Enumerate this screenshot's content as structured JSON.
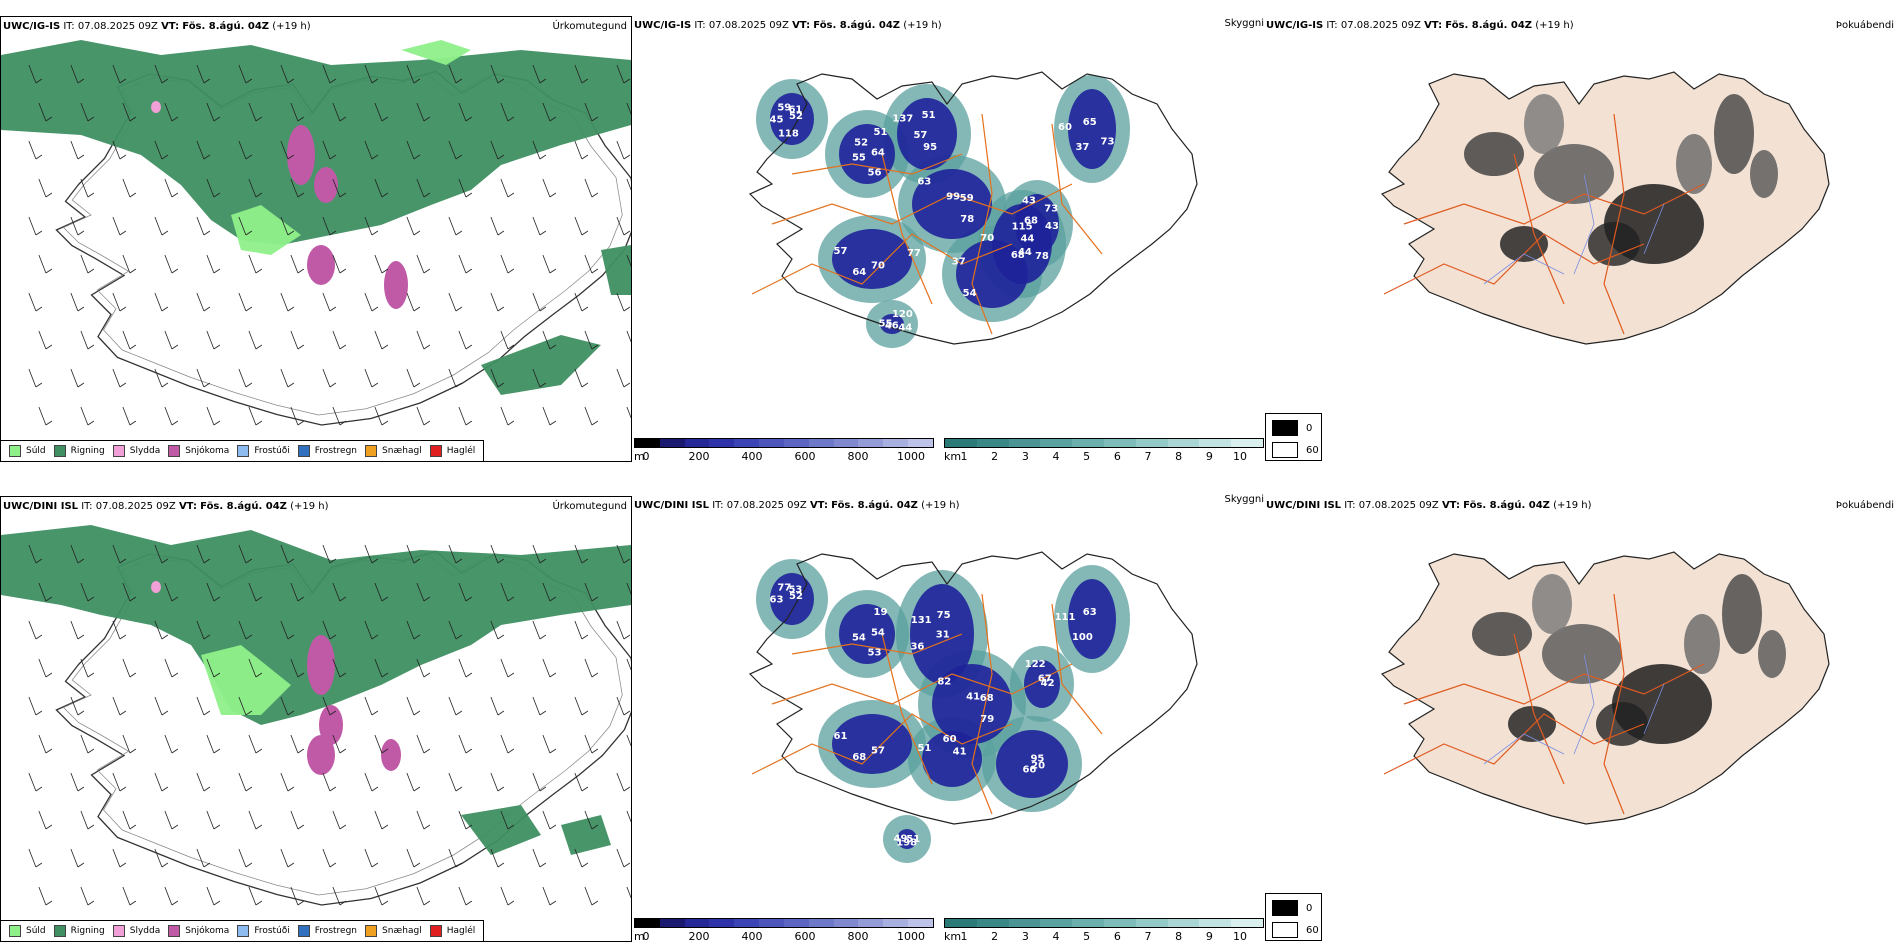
{
  "rows": [
    {
      "model": "UWC/IG-IS",
      "it_label": "IT:",
      "it_value": "07.08.2025 09Z",
      "vt_label": "VT:",
      "vt_value": "Fös. 8.ágú. 04Z",
      "lead": "(+19 h)",
      "precip_title": "Úrkomutegund",
      "fog_title": "Þokuábendi",
      "cloud_labels": [
        "52",
        "55",
        "51",
        "78",
        "57",
        "44",
        "68",
        "65",
        "43",
        "55",
        "61",
        "56",
        "137",
        "59",
        "64",
        "70",
        "78",
        "60",
        "73",
        "46",
        "59",
        "64",
        "57",
        "99",
        "70",
        "37",
        "44",
        "37",
        "43",
        "44",
        "45",
        "51",
        "95",
        "63",
        "77",
        "54",
        "115",
        "73",
        "68",
        "120",
        "118",
        "52"
      ]
    },
    {
      "model": "UWC/DINI ISL",
      "it_label": "IT:",
      "it_value": "07.08.2025 09Z",
      "vt_label": "VT:",
      "vt_value": "Fös. 8.ágú. 04Z",
      "lead": "(+19 h)",
      "precip_title": "Úrkomutegund",
      "fog_title": "Þokuábendi",
      "cloud_labels": [
        "52",
        "54",
        "75",
        "79",
        "61",
        "41",
        "66",
        "63",
        "42",
        "49",
        "53",
        "53",
        "131",
        "68",
        "68",
        "60",
        "20",
        "111",
        "67",
        "198",
        "77",
        "54",
        "36",
        "41",
        "57",
        "51",
        "95",
        "100",
        "122",
        "51",
        "63",
        "19",
        "31",
        "82"
      ]
    }
  ],
  "skyggni_title": "Skyggni",
  "precip_legend": [
    {
      "label": "Súld",
      "color": "#8ff08a"
    },
    {
      "label": "Rigning",
      "color": "#3f8f62"
    },
    {
      "label": "Slydda",
      "color": "#f0a0d6"
    },
    {
      "label": "Snjókoma",
      "color": "#c05aa6"
    },
    {
      "label": "Frostúði",
      "color": "#8ebbf0"
    },
    {
      "label": "Frostregn",
      "color": "#3070c0"
    },
    {
      "label": "Snæhagl",
      "color": "#f0a020"
    },
    {
      "label": "Haglél",
      "color": "#e02020"
    }
  ],
  "height_bar": {
    "unit": "m",
    "ticks": [
      "0",
      "200",
      "400",
      "600",
      "800",
      "1000"
    ],
    "colors": [
      "#000000",
      "#191970",
      "#232896",
      "#2e33aa",
      "#3a44b4",
      "#4b55bb",
      "#5c66c2",
      "#6e78c9",
      "#8088d0",
      "#949cd8",
      "#a8b0e0",
      "#bcc2e8"
    ]
  },
  "vis_bar": {
    "unit": "km",
    "ticks": [
      "1",
      "2",
      "3",
      "4",
      "5",
      "6",
      "7",
      "8",
      "9",
      "10"
    ],
    "colors": [
      "#2b7a78",
      "#3a8886",
      "#4a9593",
      "#5aa2a0",
      "#6bafad",
      "#7ebcba",
      "#93c9c7",
      "#a9d6d4",
      "#c1e3e1",
      "#daf0ef"
    ]
  },
  "fog_legend": [
    {
      "label": "0",
      "color": "#000000"
    },
    {
      "label": "60",
      "color": "#ffffff"
    }
  ],
  "colors": {
    "land": "#f3e2d4",
    "rain_green": "#3f8f62",
    "drizzle_green": "#8ff08a",
    "roads": "#e4711e",
    "cloud_blue": "#1e229a",
    "cloud_teal": "#5aa09e"
  }
}
